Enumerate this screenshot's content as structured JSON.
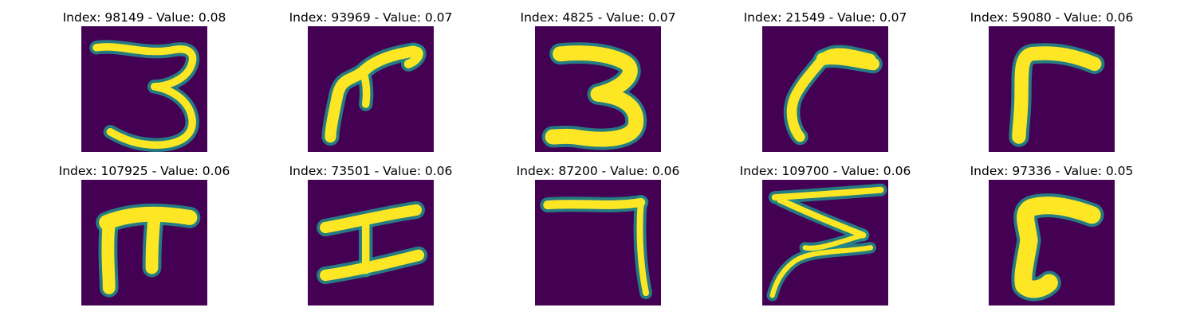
{
  "palette": {
    "background": "#440154",
    "mid": "#21908c",
    "bright": "#fde725"
  },
  "chart_data": {
    "type": "image-grid",
    "rows": 2,
    "cols": 5,
    "panels": [
      {
        "title": "Index: 98149 - Value: 0.08",
        "index": 98149,
        "value": 0.08,
        "glyph": "3"
      },
      {
        "title": "Index: 93969 - Value: 0.07",
        "index": 93969,
        "value": 0.07,
        "glyph": "hook-stem"
      },
      {
        "title": "Index: 4825 - Value: 0.07",
        "index": 4825,
        "value": 0.07,
        "glyph": "3"
      },
      {
        "title": "Index: 21549 - Value: 0.07",
        "index": 21549,
        "value": 0.07,
        "glyph": "curl"
      },
      {
        "title": "Index: 59080 - Value: 0.06",
        "index": 59080,
        "value": 0.06,
        "glyph": "corner"
      },
      {
        "title": "Index: 107925 - Value: 0.06",
        "index": 107925,
        "value": 0.06,
        "glyph": "pi"
      },
      {
        "title": "Index: 73501 - Value: 0.06",
        "index": 73501,
        "value": 0.06,
        "glyph": "I"
      },
      {
        "title": "Index: 87200 - Value: 0.06",
        "index": 87200,
        "value": 0.06,
        "glyph": "7"
      },
      {
        "title": "Index: 109700 - Value: 0.06",
        "index": 109700,
        "value": 0.06,
        "glyph": "Z"
      },
      {
        "title": "Index: 97336 - Value: 0.05",
        "index": 97336,
        "value": 0.05,
        "glyph": "thick-corner"
      }
    ]
  }
}
